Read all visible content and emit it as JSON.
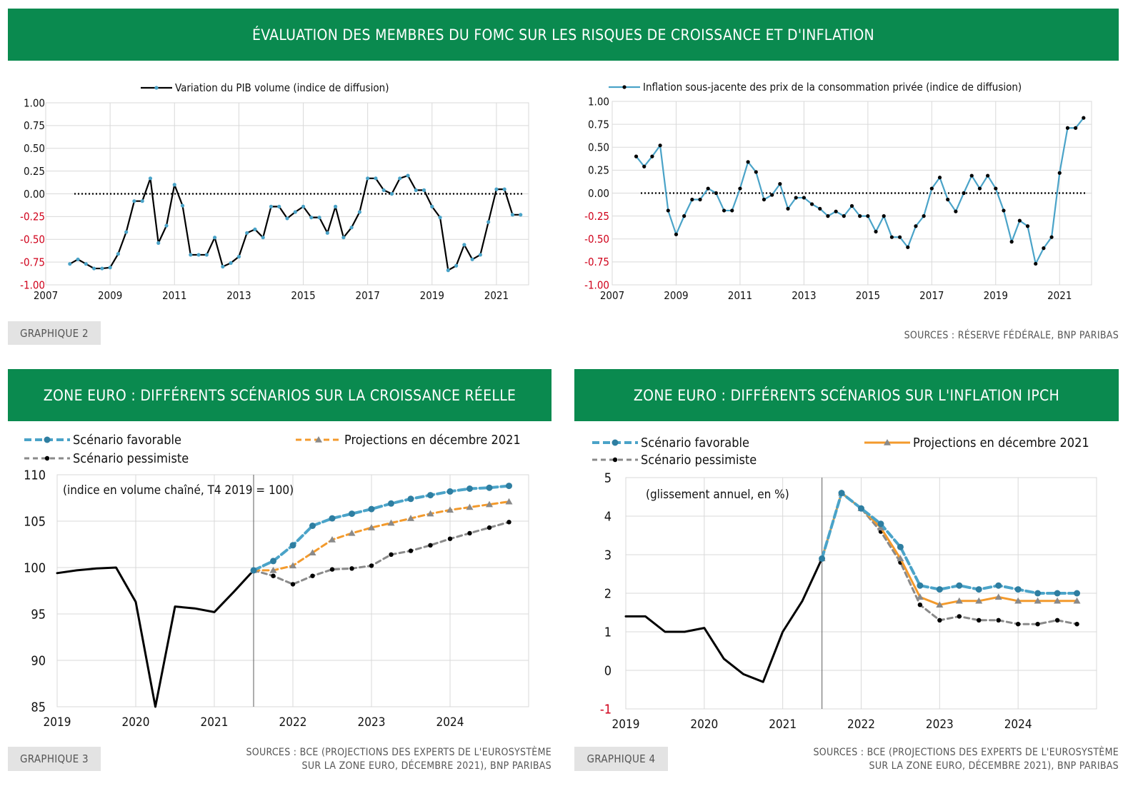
{
  "header": {
    "title": "ÉVALUATION DES MEMBRES DU FOMC SUR LES RISQUES DE CROISSANCE ET D'INFLATION"
  },
  "graph2": {
    "tag": "GRAPHIQUE 2",
    "sources": "SOURCES : RÉSERVE FÉDÉRALE, BNP PARIBAS"
  },
  "graph3": {
    "title": "ZONE EURO : DIFFÉRENTS SCÉNARIOS SUR LA CROISSANCE RÉELLE",
    "tag": "GRAPHIQUE 3",
    "sources_line1": "SOURCES : BCE (PROJECTIONS DES EXPERTS DE L'EUROSYSTÈME",
    "sources_line2": "SUR LA ZONE EURO, DÉCEMBRE 2021), BNP PARIBAS"
  },
  "graph4": {
    "title": "ZONE EURO : DIFFÉRENTS SCÉNARIOS SUR L'INFLATION IPCH",
    "tag": "GRAPHIQUE 4",
    "sources_line1": "SOURCES : BCE (PROJECTIONS DES EXPERTS DE L'EUROSYSTÈME",
    "sources_line2": "SUR LA ZONE EURO, DÉCEMBRE 2021), BNP PARIBAS"
  },
  "colors": {
    "green": "#0a8a4f",
    "blue": "#4aa3c8",
    "orange": "#f39a2c",
    "gray": "#8a8a8a",
    "black": "#000000",
    "red": "#d0021b"
  },
  "chart_data": [
    {
      "type": "line",
      "x_ticks": [
        "2007",
        "2009",
        "2011",
        "2013",
        "2015",
        "2017",
        "2019",
        "2021"
      ],
      "y_ticks": [
        "1.00",
        "0.75",
        "0.50",
        "0.25",
        "0.00",
        "-0.25",
        "-0.50",
        "-0.75",
        "-1.00"
      ],
      "ylim": [
        -1,
        1
      ],
      "xlim": [
        2007,
        2022
      ],
      "legend_position": "top-center",
      "reference_line": 0,
      "series": [
        {
          "name": "Variation du PIB volume (indice de diffusion)",
          "x": [
            2007.75,
            2008.0,
            2008.25,
            2008.5,
            2008.75,
            2009.0,
            2009.25,
            2009.5,
            2009.75,
            2010.0,
            2010.25,
            2010.5,
            2010.75,
            2011.0,
            2011.25,
            2011.5,
            2011.75,
            2012.0,
            2012.25,
            2012.5,
            2012.75,
            2013.0,
            2013.25,
            2013.5,
            2013.75,
            2014.0,
            2014.25,
            2014.5,
            2014.75,
            2015.0,
            2015.25,
            2015.5,
            2015.75,
            2016.0,
            2016.25,
            2016.5,
            2016.75,
            2017.0,
            2017.25,
            2017.5,
            2017.75,
            2018.0,
            2018.25,
            2018.5,
            2018.75,
            2019.0,
            2019.25,
            2019.5,
            2019.75,
            2020.0,
            2020.25,
            2020.5,
            2020.75,
            2021.0,
            2021.25,
            2021.5,
            2021.75
          ],
          "y": [
            -0.77,
            -0.72,
            -0.77,
            -0.82,
            -0.82,
            -0.81,
            -0.66,
            -0.42,
            -0.08,
            -0.08,
            0.17,
            -0.54,
            -0.35,
            0.1,
            -0.13,
            -0.67,
            -0.67,
            -0.67,
            -0.48,
            -0.8,
            -0.76,
            -0.69,
            -0.43,
            -0.39,
            -0.48,
            -0.14,
            -0.14,
            -0.27,
            -0.2,
            -0.14,
            -0.26,
            -0.26,
            -0.43,
            -0.14,
            -0.48,
            -0.37,
            -0.2,
            0.17,
            0.17,
            0.04,
            0.0,
            0.17,
            0.2,
            0.04,
            0.04,
            -0.14,
            -0.26,
            -0.84,
            -0.79,
            -0.56,
            -0.72,
            -0.67,
            -0.31,
            0.05,
            0.05,
            -0.23,
            -0.23
          ]
        }
      ]
    },
    {
      "type": "line",
      "x_ticks": [
        "2007",
        "2009",
        "2011",
        "2013",
        "2015",
        "2017",
        "2019",
        "2021"
      ],
      "y_ticks": [
        "1.00",
        "0.75",
        "0.50",
        "0.25",
        "0.00",
        "-0.25",
        "-0.50",
        "-0.75",
        "-1.00"
      ],
      "ylim": [
        -1,
        1
      ],
      "xlim": [
        2007,
        2022
      ],
      "legend_position": "top-center",
      "reference_line": 0,
      "series": [
        {
          "name": "Inflation sous-jacente des prix de la consommation privée (indice de diffusion)",
          "x": [
            2007.75,
            2008.0,
            2008.25,
            2008.5,
            2008.75,
            2009.0,
            2009.25,
            2009.5,
            2009.75,
            2010.0,
            2010.25,
            2010.5,
            2010.75,
            2011.0,
            2011.25,
            2011.5,
            2011.75,
            2012.0,
            2012.25,
            2012.5,
            2012.75,
            2013.0,
            2013.25,
            2013.5,
            2013.75,
            2014.0,
            2014.25,
            2014.5,
            2014.75,
            2015.0,
            2015.25,
            2015.5,
            2015.75,
            2016.0,
            2016.25,
            2016.5,
            2016.75,
            2017.0,
            2017.25,
            2017.5,
            2017.75,
            2018.0,
            2018.25,
            2018.5,
            2018.75,
            2019.0,
            2019.25,
            2019.5,
            2019.75,
            2020.0,
            2020.25,
            2020.5,
            2020.75,
            2021.0,
            2021.25,
            2021.5,
            2021.75
          ],
          "y": [
            0.4,
            0.29,
            0.4,
            0.52,
            -0.19,
            -0.45,
            -0.25,
            -0.07,
            -0.07,
            0.05,
            0.0,
            -0.19,
            -0.19,
            0.05,
            0.34,
            0.23,
            -0.07,
            -0.02,
            0.1,
            -0.17,
            -0.05,
            -0.05,
            -0.12,
            -0.17,
            -0.25,
            -0.2,
            -0.25,
            -0.14,
            -0.25,
            -0.25,
            -0.42,
            -0.25,
            -0.48,
            -0.48,
            -0.59,
            -0.36,
            -0.25,
            0.05,
            0.17,
            -0.07,
            -0.2,
            0.0,
            0.19,
            0.05,
            0.19,
            0.05,
            -0.19,
            -0.53,
            -0.3,
            -0.36,
            -0.77,
            -0.6,
            -0.48,
            0.22,
            0.71,
            0.71,
            0.82
          ]
        }
      ]
    },
    {
      "type": "line",
      "annotation": "(indice en volume chaîné, T4 2019 = 100)",
      "x_ticks": [
        "2019",
        "2020",
        "2021",
        "2022",
        "2023",
        "2024"
      ],
      "y_ticks": [
        "110",
        "105",
        "100",
        "95",
        "90",
        "85"
      ],
      "ylim": [
        85,
        110
      ],
      "xlim": [
        2019,
        2025
      ],
      "legend_position": "top",
      "series": [
        {
          "name": "",
          "x": [
            2019.0,
            2019.25,
            2019.5,
            2019.75,
            2020.0,
            2020.25,
            2020.5,
            2020.75,
            2021.0,
            2021.25,
            2021.5
          ],
          "y": [
            99.4,
            99.7,
            99.9,
            100.0,
            96.3,
            85.0,
            95.8,
            95.6,
            95.2,
            97.4,
            99.7
          ]
        },
        {
          "name": "Scénario favorable",
          "x": [
            2021.5,
            2021.75,
            2022.0,
            2022.25,
            2022.5,
            2022.75,
            2023.0,
            2023.25,
            2023.5,
            2023.75,
            2024.0,
            2024.25,
            2024.5,
            2024.75
          ],
          "y": [
            99.7,
            100.7,
            102.4,
            104.5,
            105.3,
            105.8,
            106.3,
            106.9,
            107.4,
            107.8,
            108.2,
            108.5,
            108.6,
            108.8
          ]
        },
        {
          "name": "Projections en décembre 2021",
          "x": [
            2021.5,
            2021.75,
            2022.0,
            2022.25,
            2022.5,
            2022.75,
            2023.0,
            2023.25,
            2023.5,
            2023.75,
            2024.0,
            2024.25,
            2024.5,
            2024.75
          ],
          "y": [
            99.7,
            99.7,
            100.2,
            101.6,
            103.0,
            103.7,
            104.3,
            104.8,
            105.3,
            105.8,
            106.2,
            106.5,
            106.8,
            107.1
          ]
        },
        {
          "name": "Scénario pessimiste",
          "x": [
            2021.5,
            2021.75,
            2022.0,
            2022.25,
            2022.5,
            2022.75,
            2023.0,
            2023.25,
            2023.5,
            2023.75,
            2024.0,
            2024.25,
            2024.5,
            2024.75
          ],
          "y": [
            99.7,
            99.1,
            98.2,
            99.1,
            99.8,
            99.9,
            100.2,
            101.4,
            101.8,
            102.4,
            103.1,
            103.7,
            104.3,
            104.9
          ]
        }
      ]
    },
    {
      "type": "line",
      "annotation": "(glissement annuel, en %)",
      "x_ticks": [
        "2019",
        "2020",
        "2021",
        "2022",
        "2023",
        "2024"
      ],
      "y_ticks": [
        "5",
        "4",
        "3",
        "2",
        "1",
        "0",
        "-1"
      ],
      "ylim": [
        -1,
        5
      ],
      "xlim": [
        2019,
        2025
      ],
      "legend_position": "top",
      "series": [
        {
          "name": "",
          "x": [
            2019.0,
            2019.25,
            2019.5,
            2019.75,
            2020.0,
            2020.25,
            2020.5,
            2020.75,
            2021.0,
            2021.25,
            2021.5
          ],
          "y": [
            1.4,
            1.4,
            1.0,
            1.0,
            1.1,
            0.3,
            -0.1,
            -0.3,
            1.0,
            1.8,
            2.9
          ]
        },
        {
          "name": "Scénario favorable",
          "x": [
            2021.5,
            2021.75,
            2022.0,
            2022.25,
            2022.5,
            2022.75,
            2023.0,
            2023.25,
            2023.5,
            2023.75,
            2024.0,
            2024.25,
            2024.5,
            2024.75
          ],
          "y": [
            2.9,
            4.6,
            4.2,
            3.8,
            3.2,
            2.2,
            2.1,
            2.2,
            2.1,
            2.2,
            2.1,
            2.0,
            2.0,
            2.0
          ]
        },
        {
          "name": "Projections en décembre 2021",
          "x": [
            2021.5,
            2021.75,
            2022.0,
            2022.25,
            2022.5,
            2022.75,
            2023.0,
            2023.25,
            2023.5,
            2023.75,
            2024.0,
            2024.25,
            2024.5,
            2024.75
          ],
          "y": [
            2.9,
            4.6,
            4.2,
            3.7,
            2.9,
            1.9,
            1.7,
            1.8,
            1.8,
            1.9,
            1.8,
            1.8,
            1.8,
            1.8
          ]
        },
        {
          "name": "Scénario pessimiste",
          "x": [
            2021.5,
            2021.75,
            2022.0,
            2022.25,
            2022.5,
            2022.75,
            2023.0,
            2023.25,
            2023.5,
            2023.75,
            2024.0,
            2024.25,
            2024.5,
            2024.75
          ],
          "y": [
            2.9,
            4.6,
            4.2,
            3.6,
            2.8,
            1.7,
            1.3,
            1.4,
            1.3,
            1.3,
            1.2,
            1.2,
            1.3,
            1.2
          ]
        }
      ]
    }
  ]
}
